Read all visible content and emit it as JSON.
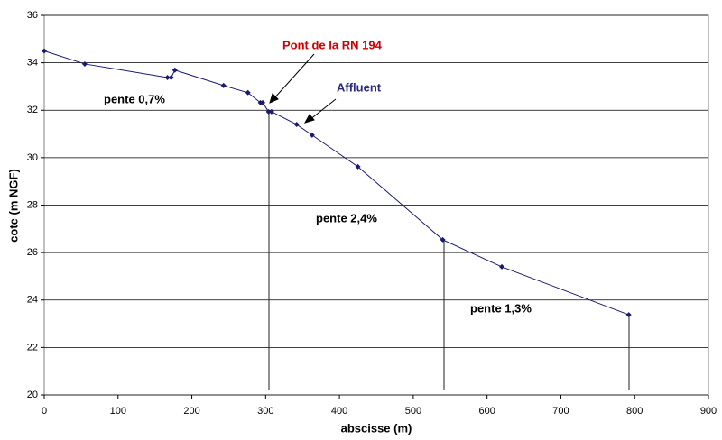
{
  "chart_data": {
    "type": "line",
    "x": [
      0,
      55,
      167,
      172,
      177,
      243,
      276,
      293,
      296,
      304,
      308,
      342,
      363,
      425,
      540,
      620,
      792
    ],
    "values": [
      34.5,
      33.95,
      33.38,
      33.38,
      33.69,
      33.04,
      32.74,
      32.32,
      32.32,
      31.94,
      31.94,
      31.4,
      30.95,
      29.62,
      26.54,
      25.4,
      23.38
    ],
    "color": "#1a1a6e",
    "xlim": [
      0,
      900
    ],
    "xticks": [
      0,
      100,
      200,
      300,
      400,
      500,
      600,
      700,
      800,
      900
    ],
    "ylim": [
      20,
      36
    ],
    "yticks": [
      20,
      22,
      24,
      26,
      28,
      30,
      32,
      34,
      36
    ],
    "grid": true,
    "xlabel": "abscisse (m)",
    "ylabel": "cote (m NGF)",
    "annotations": [
      "pente 0,7%",
      "pente 2,4%",
      "pente 1,3%",
      "Pont de la RN 194",
      "Affluent"
    ]
  }
}
